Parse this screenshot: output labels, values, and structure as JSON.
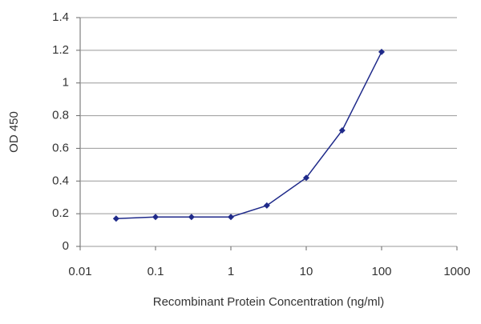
{
  "chart_data": {
    "type": "line",
    "xlabel": "Recombinant Protein Concentration (ng/ml)",
    "ylabel": "OD 450",
    "x": [
      0.03,
      0.1,
      0.3,
      1,
      3,
      10,
      30,
      100
    ],
    "series": [
      {
        "color": "#1f2a8a",
        "values": [
          0.17,
          0.18,
          0.18,
          0.18,
          0.25,
          0.42,
          0.71,
          1.19
        ]
      }
    ],
    "xscale": "log",
    "xlim": [
      0.01,
      1000
    ],
    "xticks": [
      0.01,
      0.1,
      1,
      10,
      100,
      1000
    ],
    "ylim": [
      0,
      1.4
    ],
    "yticks": [
      0,
      0.2,
      0.4,
      0.6,
      0.8,
      1,
      1.2,
      1.4
    ],
    "grid": true
  }
}
